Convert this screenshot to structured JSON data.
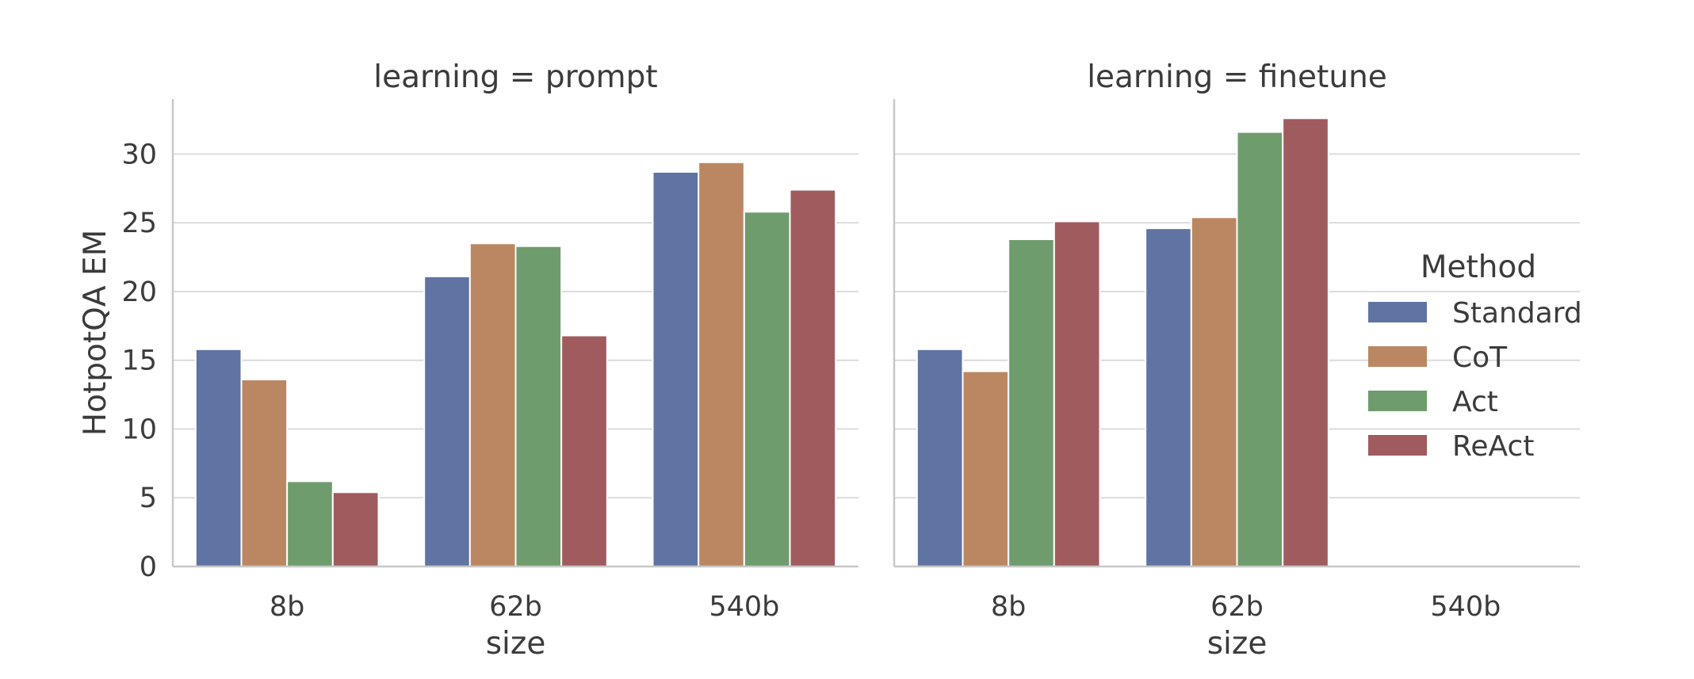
{
  "chart_data": [
    {
      "type": "bar",
      "title": "learning = prompt",
      "xlabel": "size",
      "ylabel": "HotpotQA EM",
      "categories": [
        "8b",
        "62b",
        "540b"
      ],
      "ylim": [
        0,
        34
      ],
      "yticks": [
        0,
        5,
        10,
        15,
        20,
        25,
        30
      ],
      "grid": true,
      "series": [
        {
          "name": "Standard",
          "color": "#5f74a3",
          "values": [
            15.8,
            21.1,
            28.7
          ]
        },
        {
          "name": "CoT",
          "color": "#bb8762",
          "values": [
            13.6,
            23.5,
            29.4
          ]
        },
        {
          "name": "Act",
          "color": "#6f9c6d",
          "values": [
            6.2,
            23.3,
            25.8
          ]
        },
        {
          "name": "ReAct",
          "color": "#a05b5e",
          "values": [
            5.4,
            16.8,
            27.4
          ]
        }
      ]
    },
    {
      "type": "bar",
      "title": "learning = finetune",
      "xlabel": "size",
      "ylabel": "",
      "categories": [
        "8b",
        "62b",
        "540b"
      ],
      "ylim": [
        0,
        34
      ],
      "grid": true,
      "series": [
        {
          "name": "Standard",
          "color": "#5f74a3",
          "values": [
            15.8,
            24.6,
            null
          ]
        },
        {
          "name": "CoT",
          "color": "#bb8762",
          "values": [
            14.2,
            25.4,
            null
          ]
        },
        {
          "name": "Act",
          "color": "#6f9c6d",
          "values": [
            23.8,
            31.6,
            null
          ]
        },
        {
          "name": "ReAct",
          "color": "#a05b5e",
          "values": [
            25.1,
            32.6,
            null
          ]
        }
      ]
    }
  ],
  "legend": {
    "title": "Method",
    "placement": "right",
    "items": [
      {
        "label": "Standard",
        "color": "#5f74a3"
      },
      {
        "label": "CoT",
        "color": "#bb8762"
      },
      {
        "label": "Act",
        "color": "#6f9c6d"
      },
      {
        "label": "ReAct",
        "color": "#a05b5e"
      }
    ]
  }
}
